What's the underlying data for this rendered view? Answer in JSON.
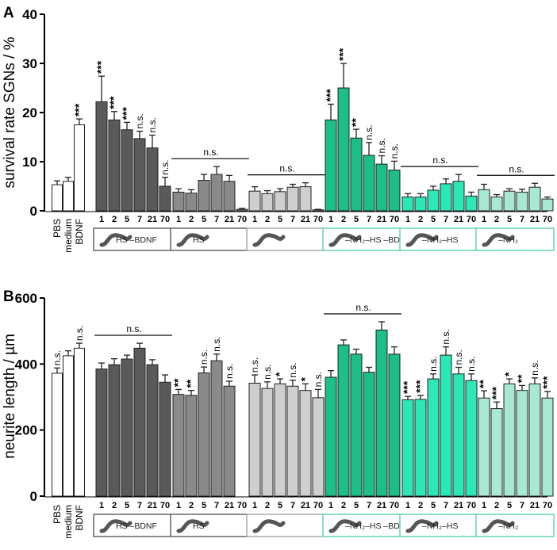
{
  "chart_data": [
    {
      "panel": "A",
      "type": "bar",
      "ylabel": "survival rate SGNs / %",
      "ylim": [
        0,
        40
      ],
      "yticks": [
        0,
        10,
        20,
        30,
        40
      ],
      "controls": {
        "categories": [
          "PBS",
          "medium",
          "BDNF"
        ],
        "values": [
          5.3,
          6.0,
          17.5
        ],
        "errors": [
          0.8,
          0.8,
          1.2
        ],
        "significance": [
          "",
          "",
          "***"
        ]
      },
      "groups": [
        {
          "name": "HS-BDNF",
          "label": "HS –BDNF",
          "kind": "HS",
          "color": "#5a5a5a",
          "categories": [
            "1",
            "2",
            "5",
            "7",
            "21",
            "70"
          ],
          "values": [
            22.2,
            18.5,
            16.5,
            14.7,
            12.8,
            5.0
          ],
          "errors": [
            5.2,
            1.7,
            1.5,
            1.5,
            2.6,
            1.8
          ],
          "significance": [
            "***",
            "***",
            "***",
            "n.s.",
            "n.s.",
            "n.s."
          ],
          "bracket": ""
        },
        {
          "name": "HS",
          "label": "HS",
          "kind": "HS",
          "color": "#8a8a8a",
          "categories": [
            "1",
            "2",
            "5",
            "7",
            "21",
            "70"
          ],
          "values": [
            3.8,
            3.6,
            6.2,
            7.4,
            6.0,
            0.3
          ],
          "errors": [
            0.7,
            0.7,
            1.2,
            1.6,
            1.2,
            0.2
          ],
          "significance": [
            "",
            "",
            "",
            "",
            "",
            ""
          ],
          "bracket": "n.s."
        },
        {
          "name": "plain",
          "label": "",
          "kind": "plain",
          "color": "#cfcfcf",
          "categories": [
            "1",
            "2",
            "5",
            "7",
            "21",
            "70"
          ],
          "values": [
            4.0,
            3.5,
            3.9,
            4.8,
            4.9,
            0.2
          ],
          "errors": [
            0.9,
            0.6,
            0.6,
            0.6,
            0.8,
            0.1
          ],
          "significance": [
            "",
            "",
            "",
            "",
            "",
            ""
          ],
          "bracket": "n.s."
        },
        {
          "name": "NH2-HS-BDNF",
          "label": "–NH₂–HS –BDNF",
          "kind": "NH2",
          "color": "#1bbf87",
          "categories": [
            "1",
            "2",
            "5",
            "7",
            "21",
            "70"
          ],
          "values": [
            18.5,
            25.0,
            14.8,
            11.3,
            9.5,
            8.3
          ],
          "errors": [
            3.2,
            5.0,
            1.8,
            2.6,
            1.7,
            1.8
          ],
          "significance": [
            "***",
            "***",
            "**",
            "n.s.",
            "n.s.",
            "n.s."
          ],
          "bracket": ""
        },
        {
          "name": "NH2-HS",
          "label": "–NH₂–HS",
          "kind": "NH2",
          "color": "#2ce8b6",
          "categories": [
            "1",
            "2",
            "5",
            "7",
            "21",
            "70"
          ],
          "values": [
            2.8,
            2.8,
            4.2,
            5.5,
            6.0,
            3.0
          ],
          "errors": [
            0.7,
            0.7,
            0.8,
            1.0,
            1.4,
            0.8
          ],
          "significance": [
            "",
            "",
            "",
            "",
            "",
            ""
          ],
          "bracket": "n.s."
        },
        {
          "name": "NH2",
          "label": "–NH₂",
          "kind": "NH2",
          "color": "#a9e8d2",
          "categories": [
            "1",
            "2",
            "5",
            "7",
            "21",
            "70"
          ],
          "values": [
            4.3,
            2.8,
            4.0,
            3.8,
            4.8,
            2.4
          ],
          "errors": [
            1.1,
            0.5,
            0.5,
            0.6,
            0.8,
            0.4
          ],
          "significance": [
            "",
            "",
            "",
            "",
            "",
            ""
          ],
          "bracket": "n.s."
        }
      ]
    },
    {
      "panel": "B",
      "type": "bar",
      "ylabel": "neurite length / µm",
      "ylim": [
        0,
        600
      ],
      "yticks": [
        0,
        200,
        400,
        600
      ],
      "controls": {
        "categories": [
          "PBS",
          "medium",
          "BDNF"
        ],
        "values": [
          372,
          425,
          448
        ],
        "errors": [
          16,
          15,
          15
        ],
        "significance": [
          "n.s.",
          "",
          "n.s."
        ]
      },
      "groups": [
        {
          "name": "HS-BDNF",
          "label": "HS –BDNF",
          "kind": "HS",
          "color": "#5a5a5a",
          "categories": [
            "1",
            "2",
            "5",
            "7",
            "21",
            "70"
          ],
          "values": [
            385,
            398,
            415,
            448,
            398,
            345
          ],
          "errors": [
            18,
            18,
            12,
            15,
            15,
            22
          ],
          "significance": [
            "",
            "",
            "",
            "",
            "",
            ""
          ],
          "bracket": "n.s."
        },
        {
          "name": "HS",
          "label": "HS",
          "kind": "HS",
          "color": "#8a8a8a",
          "categories": [
            "1",
            "2",
            "5",
            "7",
            "21",
            "70"
          ],
          "values": [
            308,
            305,
            373,
            410,
            333,
            null
          ],
          "errors": [
            15,
            15,
            18,
            20,
            15,
            0
          ],
          "significance": [
            "**",
            "**",
            "n.s.",
            "n.s.",
            "n.s.",
            ""
          ],
          "bracket": ""
        },
        {
          "name": "plain",
          "label": "",
          "kind": "plain",
          "color": "#cfcfcf",
          "categories": [
            "1",
            "2",
            "5",
            "7",
            "21",
            "70"
          ],
          "values": [
            342,
            326,
            340,
            333,
            320,
            298
          ],
          "errors": [
            25,
            20,
            15,
            18,
            20,
            25
          ],
          "significance": [
            "n.s.",
            "n.s.",
            "*",
            "n.s.",
            "*",
            "n.s."
          ],
          "bracket": ""
        },
        {
          "name": "NH2-HS-BDNF",
          "label": "–NH₂–HS –BDNF",
          "kind": "NH2",
          "color": "#1bbf87",
          "categories": [
            "1",
            "2",
            "5",
            "7",
            "21",
            "70"
          ],
          "values": [
            360,
            458,
            430,
            375,
            503,
            430
          ],
          "errors": [
            20,
            15,
            15,
            15,
            25,
            22
          ],
          "significance": [
            "",
            "",
            "",
            "",
            "",
            ""
          ],
          "bracket": "n.s."
        },
        {
          "name": "NH2-HS",
          "label": "–NH₂–HS",
          "kind": "NH2",
          "color": "#2ce8b6",
          "categories": [
            "1",
            "2",
            "5",
            "7",
            "21",
            "70"
          ],
          "values": [
            292,
            293,
            355,
            427,
            370,
            350
          ],
          "errors": [
            10,
            12,
            15,
            25,
            20,
            20
          ],
          "significance": [
            "***",
            "***",
            "n.s.",
            "n.s.",
            "n.s.",
            "n.s."
          ],
          "bracket": ""
        },
        {
          "name": "NH2",
          "label": "–NH₂",
          "kind": "NH2",
          "color": "#a9e8d2",
          "categories": [
            "1",
            "2",
            "5",
            "7",
            "21",
            "70"
          ],
          "values": [
            297,
            265,
            340,
            320,
            340,
            297
          ],
          "errors": [
            22,
            20,
            15,
            15,
            18,
            20
          ],
          "significance": [
            "**",
            "***",
            "*",
            "**",
            "n.s.",
            "***"
          ],
          "bracket": ""
        }
      ]
    }
  ]
}
